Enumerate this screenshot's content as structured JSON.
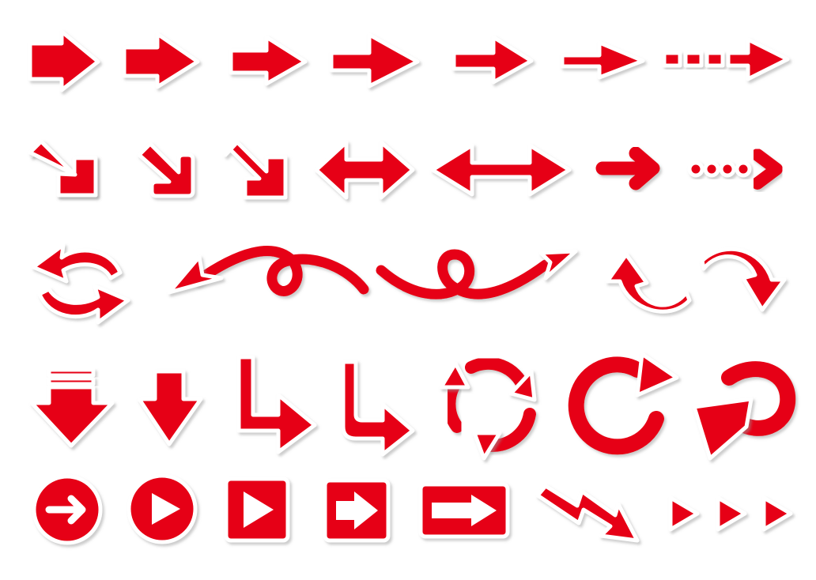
{
  "colors": {
    "red": "#e60012",
    "outline": "#ffffff",
    "shadow": "#9a9a9a",
    "background": "#ffffff"
  },
  "icons": [
    "block-arrow-right-icon",
    "block-arrow-right-icon",
    "block-arrow-right-icon",
    "block-arrow-right-icon",
    "block-arrow-right-icon",
    "block-arrow-right-icon",
    "dashed-arrow-right-icon",
    "arrow-down-right-icon",
    "arrow-down-right-icon",
    "arrow-down-right-icon",
    "double-arrow-horizontal-icon",
    "double-arrow-horizontal-icon",
    "rounded-arrow-right-icon",
    "dotted-arrow-right-icon",
    "swap-arrows-icon",
    "looping-arrow-left-icon",
    "looping-arrow-right-icon",
    "curved-arrow-up-icon",
    "curved-arrow-down-icon",
    "arrow-down-with-bars-icon",
    "arrow-down-icon",
    "elbow-arrow-down-right-icon",
    "elbow-arrow-down-right-icon",
    "recycle-arrows-icon",
    "circular-arrow-icon",
    "curled-arrow-left-icon",
    "circle-arrow-button-icon",
    "circle-play-button-icon",
    "square-play-button-icon",
    "square-arrow-button-icon",
    "rectangle-arrow-button-icon",
    "zigzag-arrow-icon",
    "triple-chevron-icon"
  ]
}
